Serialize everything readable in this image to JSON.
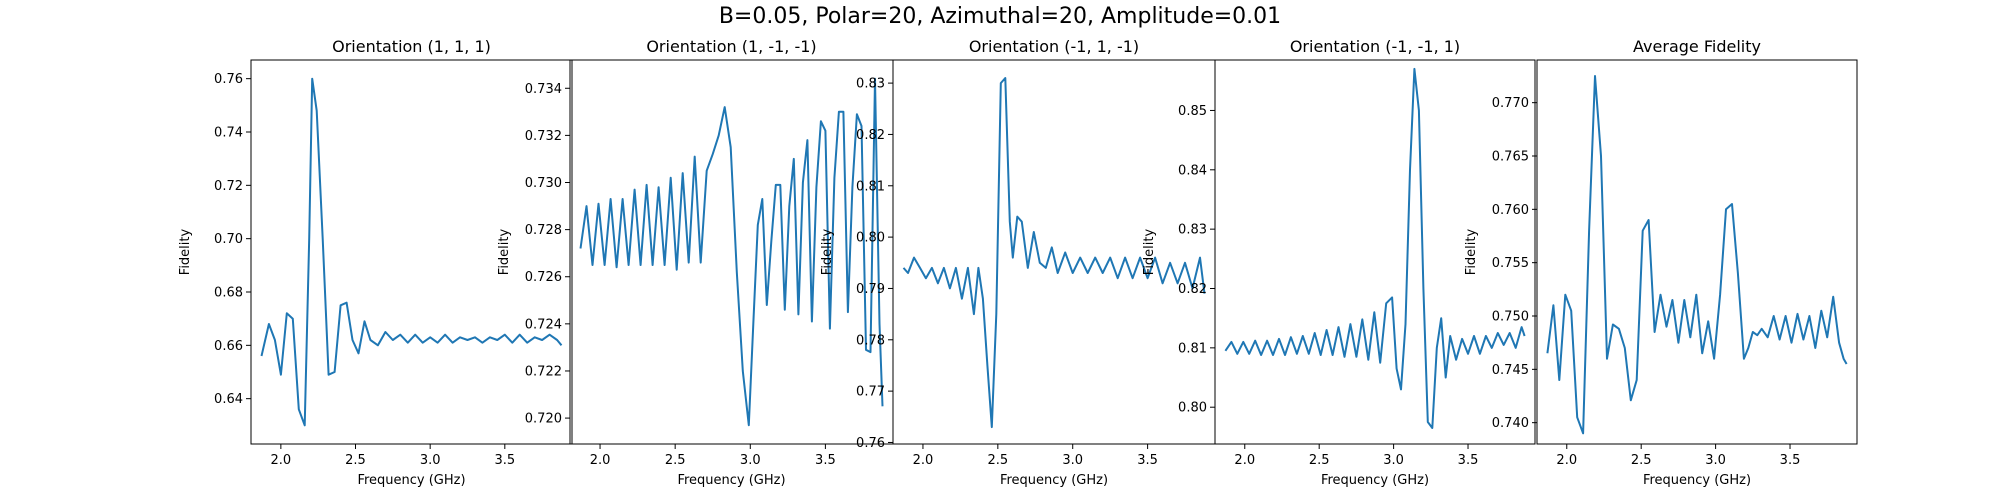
{
  "figure": {
    "suptitle": "B=0.05, Polar=20, Azimuthal=20, Amplitude=0.01"
  },
  "style": {
    "line_color": "#1f77b4",
    "axis_color": "#000000",
    "background": "#ffffff"
  },
  "chart_data": [
    {
      "type": "line",
      "title": "Orientation (1, 1, 1)",
      "xlabel": "Frequency (GHz)",
      "ylabel": "Fidelity",
      "xlim": [
        1.8,
        3.95
      ],
      "ylim": [
        0.623,
        0.767
      ],
      "xticks": [
        2.0,
        2.5,
        3.0,
        3.5
      ],
      "xtick_labels": [
        "2.0",
        "2.5",
        "3.0",
        "3.5"
      ],
      "yticks": [
        0.64,
        0.66,
        0.68,
        0.7,
        0.72,
        0.74,
        0.76
      ],
      "ytick_labels": [
        "0.64",
        "0.66",
        "0.68",
        "0.70",
        "0.72",
        "0.74",
        "0.76"
      ],
      "grid": false,
      "series": [
        {
          "x": [
            1.87,
            1.92,
            1.96,
            2.0,
            2.04,
            2.08,
            2.12,
            2.16,
            2.19,
            2.21,
            2.24,
            2.28,
            2.32,
            2.36,
            2.4,
            2.44,
            2.48,
            2.52,
            2.56,
            2.6,
            2.65,
            2.7,
            2.75,
            2.8,
            2.85,
            2.9,
            2.95,
            3.0,
            3.05,
            3.1,
            3.15,
            3.2,
            3.25,
            3.3,
            3.35,
            3.4,
            3.45,
            3.5,
            3.55,
            3.6,
            3.65,
            3.7,
            3.75,
            3.8,
            3.85,
            3.88
          ],
          "y": [
            0.656,
            0.668,
            0.662,
            0.649,
            0.672,
            0.67,
            0.636,
            0.63,
            0.7,
            0.76,
            0.748,
            0.7,
            0.649,
            0.65,
            0.675,
            0.676,
            0.662,
            0.657,
            0.669,
            0.662,
            0.66,
            0.665,
            0.662,
            0.664,
            0.661,
            0.664,
            0.661,
            0.663,
            0.661,
            0.664,
            0.661,
            0.663,
            0.662,
            0.663,
            0.661,
            0.663,
            0.662,
            0.664,
            0.661,
            0.664,
            0.661,
            0.663,
            0.662,
            0.664,
            0.662,
            0.66
          ]
        }
      ]
    },
    {
      "type": "line",
      "title": "Orientation (1, -1, -1)",
      "xlabel": "Frequency (GHz)",
      "ylabel": "Fidelity",
      "xlim": [
        1.8,
        3.95
      ],
      "ylim": [
        0.7189,
        0.7352
      ],
      "xticks": [
        2.0,
        2.5,
        3.0,
        3.5
      ],
      "xtick_labels": [
        "2.0",
        "2.5",
        "3.0",
        "3.5"
      ],
      "yticks": [
        0.72,
        0.722,
        0.724,
        0.726,
        0.728,
        0.73,
        0.732,
        0.734
      ],
      "ytick_labels": [
        "0.720",
        "0.722",
        "0.724",
        "0.726",
        "0.728",
        "0.730",
        "0.732",
        "0.734"
      ],
      "grid": false,
      "series": [
        {
          "x": [
            1.87,
            1.91,
            1.95,
            1.99,
            2.03,
            2.07,
            2.11,
            2.15,
            2.19,
            2.23,
            2.27,
            2.31,
            2.35,
            2.39,
            2.43,
            2.47,
            2.51,
            2.55,
            2.59,
            2.63,
            2.67,
            2.71,
            2.75,
            2.79,
            2.83,
            2.87,
            2.91,
            2.95,
            2.99,
            3.02,
            3.05,
            3.08,
            3.11,
            3.14,
            3.17,
            3.2,
            3.23,
            3.26,
            3.29,
            3.32,
            3.35,
            3.38,
            3.41,
            3.44,
            3.47,
            3.5,
            3.53,
            3.56,
            3.59,
            3.62,
            3.65,
            3.68,
            3.71,
            3.74,
            3.77,
            3.8,
            3.83,
            3.86,
            3.88
          ],
          "y": [
            0.7272,
            0.729,
            0.7265,
            0.7291,
            0.7265,
            0.7293,
            0.7264,
            0.7293,
            0.7265,
            0.7297,
            0.7265,
            0.7299,
            0.7265,
            0.7298,
            0.7265,
            0.7302,
            0.7263,
            0.7304,
            0.7266,
            0.7311,
            0.7266,
            0.7305,
            0.7312,
            0.732,
            0.7332,
            0.7315,
            0.7262,
            0.722,
            0.7197,
            0.724,
            0.7282,
            0.7293,
            0.7248,
            0.7275,
            0.7299,
            0.7299,
            0.7246,
            0.729,
            0.731,
            0.7244,
            0.73,
            0.7318,
            0.7241,
            0.7298,
            0.7326,
            0.7322,
            0.7238,
            0.7302,
            0.733,
            0.733,
            0.7245,
            0.7298,
            0.7329,
            0.7324,
            0.7229,
            0.7228,
            0.7344,
            0.724,
            0.7205
          ]
        }
      ]
    },
    {
      "type": "line",
      "title": "Orientation (-1, 1, -1)",
      "xlabel": "Frequency (GHz)",
      "ylabel": "Fidelity",
      "xlim": [
        1.8,
        3.95
      ],
      "ylim": [
        0.7597,
        0.8345
      ],
      "xticks": [
        2.0,
        2.5,
        3.0,
        3.5
      ],
      "xtick_labels": [
        "2.0",
        "2.5",
        "3.0",
        "3.5"
      ],
      "yticks": [
        0.76,
        0.77,
        0.78,
        0.79,
        0.8,
        0.81,
        0.82,
        0.83
      ],
      "ytick_labels": [
        "0.76",
        "0.77",
        "0.78",
        "0.79",
        "0.80",
        "0.81",
        "0.82",
        "0.83"
      ],
      "grid": false,
      "series": [
        {
          "x": [
            1.87,
            1.9,
            1.94,
            1.98,
            2.02,
            2.06,
            2.1,
            2.14,
            2.18,
            2.22,
            2.26,
            2.3,
            2.34,
            2.37,
            2.4,
            2.43,
            2.46,
            2.49,
            2.52,
            2.55,
            2.58,
            2.6,
            2.63,
            2.66,
            2.7,
            2.74,
            2.78,
            2.82,
            2.86,
            2.9,
            2.95,
            3.0,
            3.05,
            3.1,
            3.15,
            3.2,
            3.25,
            3.3,
            3.35,
            3.4,
            3.45,
            3.5,
            3.55,
            3.6,
            3.65,
            3.7,
            3.75,
            3.8,
            3.85,
            3.88
          ],
          "y": [
            0.794,
            0.793,
            0.796,
            0.794,
            0.792,
            0.794,
            0.791,
            0.794,
            0.79,
            0.794,
            0.788,
            0.794,
            0.785,
            0.794,
            0.788,
            0.775,
            0.763,
            0.785,
            0.83,
            0.831,
            0.803,
            0.796,
            0.804,
            0.803,
            0.794,
            0.801,
            0.795,
            0.794,
            0.798,
            0.793,
            0.797,
            0.793,
            0.796,
            0.793,
            0.796,
            0.793,
            0.796,
            0.792,
            0.796,
            0.792,
            0.796,
            0.792,
            0.796,
            0.791,
            0.795,
            0.791,
            0.795,
            0.79,
            0.796,
            0.789
          ]
        }
      ]
    },
    {
      "type": "line",
      "title": "Orientation (-1, -1, 1)",
      "xlabel": "Frequency (GHz)",
      "ylabel": "Fidelity",
      "xlim": [
        1.8,
        3.95
      ],
      "ylim": [
        0.7938,
        0.8585
      ],
      "xticks": [
        2.0,
        2.5,
        3.0,
        3.5
      ],
      "xtick_labels": [
        "2.0",
        "2.5",
        "3.0",
        "3.5"
      ],
      "yticks": [
        0.8,
        0.81,
        0.82,
        0.83,
        0.84,
        0.85
      ],
      "ytick_labels": [
        "0.80",
        "0.81",
        "0.82",
        "0.83",
        "0.84",
        "0.85"
      ],
      "grid": false,
      "series": [
        {
          "x": [
            1.87,
            1.91,
            1.95,
            1.99,
            2.03,
            2.07,
            2.11,
            2.15,
            2.19,
            2.23,
            2.27,
            2.31,
            2.35,
            2.39,
            2.43,
            2.47,
            2.51,
            2.55,
            2.59,
            2.63,
            2.67,
            2.71,
            2.75,
            2.79,
            2.83,
            2.87,
            2.91,
            2.95,
            2.99,
            3.02,
            3.05,
            3.08,
            3.11,
            3.14,
            3.17,
            3.2,
            3.23,
            3.26,
            3.29,
            3.32,
            3.35,
            3.38,
            3.42,
            3.46,
            3.5,
            3.54,
            3.58,
            3.62,
            3.66,
            3.7,
            3.74,
            3.78,
            3.82,
            3.86,
            3.88
          ],
          "y": [
            0.8095,
            0.811,
            0.809,
            0.811,
            0.809,
            0.8112,
            0.8088,
            0.8112,
            0.8088,
            0.8115,
            0.8088,
            0.8118,
            0.809,
            0.812,
            0.809,
            0.8125,
            0.8088,
            0.813,
            0.8088,
            0.8135,
            0.8085,
            0.814,
            0.8085,
            0.8148,
            0.808,
            0.816,
            0.8075,
            0.8175,
            0.8185,
            0.8065,
            0.803,
            0.814,
            0.84,
            0.857,
            0.85,
            0.82,
            0.7975,
            0.7965,
            0.81,
            0.815,
            0.805,
            0.812,
            0.808,
            0.8115,
            0.809,
            0.812,
            0.809,
            0.812,
            0.81,
            0.8125,
            0.8105,
            0.8125,
            0.81,
            0.8135,
            0.812
          ]
        }
      ]
    },
    {
      "type": "line",
      "title": "Average Fidelity",
      "xlabel": "Frequency (GHz)",
      "ylabel": "Fidelity",
      "xlim": [
        1.8,
        3.95
      ],
      "ylim": [
        0.738,
        0.774
      ],
      "xticks": [
        2.0,
        2.5,
        3.0,
        3.5
      ],
      "xtick_labels": [
        "2.0",
        "2.5",
        "3.0",
        "3.5"
      ],
      "yticks": [
        0.74,
        0.745,
        0.75,
        0.755,
        0.76,
        0.765,
        0.77
      ],
      "ytick_labels": [
        "0.740",
        "0.745",
        "0.750",
        "0.755",
        "0.760",
        "0.765",
        "0.770"
      ],
      "grid": false,
      "series": [
        {
          "x": [
            1.87,
            1.91,
            1.95,
            1.99,
            2.03,
            2.07,
            2.11,
            2.15,
            2.19,
            2.23,
            2.27,
            2.31,
            2.35,
            2.39,
            2.43,
            2.47,
            2.51,
            2.55,
            2.59,
            2.63,
            2.67,
            2.71,
            2.75,
            2.79,
            2.83,
            2.87,
            2.91,
            2.95,
            2.99,
            3.03,
            3.07,
            3.11,
            3.15,
            3.19,
            3.22,
            3.25,
            3.28,
            3.31,
            3.35,
            3.39,
            3.43,
            3.47,
            3.51,
            3.55,
            3.59,
            3.63,
            3.67,
            3.71,
            3.75,
            3.79,
            3.83,
            3.86,
            3.88
          ],
          "y": [
            0.7465,
            0.751,
            0.744,
            0.752,
            0.7505,
            0.7405,
            0.739,
            0.758,
            0.7725,
            0.765,
            0.746,
            0.7492,
            0.7488,
            0.747,
            0.7421,
            0.744,
            0.758,
            0.759,
            0.7485,
            0.752,
            0.749,
            0.7515,
            0.7475,
            0.7515,
            0.748,
            0.752,
            0.7465,
            0.7495,
            0.746,
            0.752,
            0.76,
            0.7605,
            0.754,
            0.746,
            0.747,
            0.7485,
            0.7482,
            0.7488,
            0.748,
            0.75,
            0.7478,
            0.75,
            0.7475,
            0.7502,
            0.7478,
            0.75,
            0.747,
            0.7505,
            0.748,
            0.7518,
            0.7475,
            0.746,
            0.7455
          ]
        }
      ]
    }
  ]
}
